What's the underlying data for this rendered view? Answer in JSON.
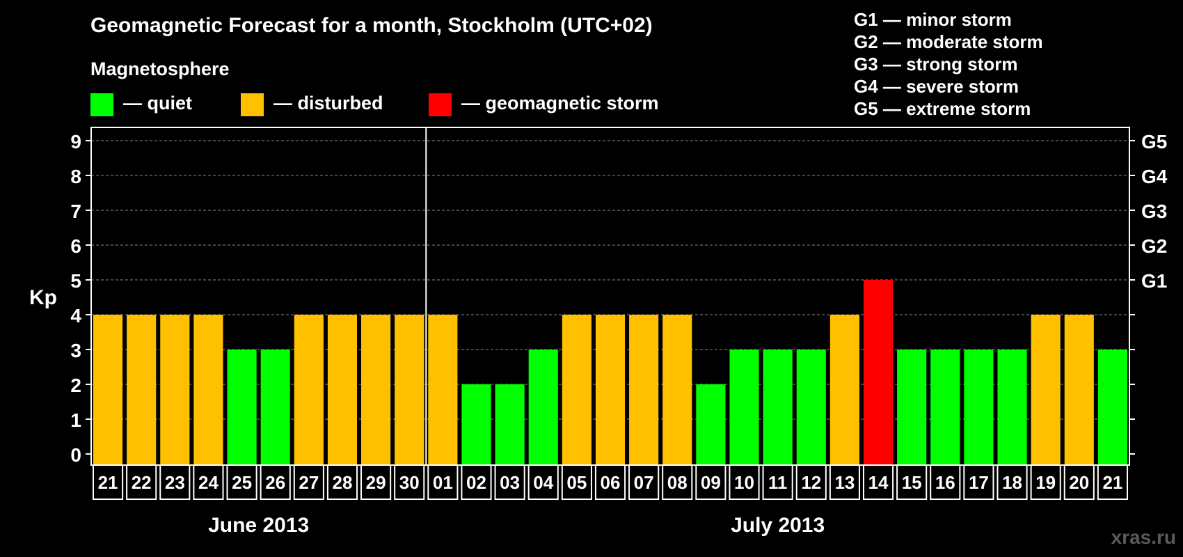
{
  "header": {
    "title": "Geomagnetic Forecast for a month, Stockholm (UTC+02)",
    "legend_heading": "Magnetosphere"
  },
  "legend": [
    {
      "label": "— quiet",
      "color": "#00ff00"
    },
    {
      "label": "— disturbed",
      "color": "#ffc000"
    },
    {
      "label": "— geomagnetic storm",
      "color": "#ff0000"
    }
  ],
  "storm_scale": [
    "G1 — minor storm",
    "G2 — moderate storm",
    "G3 — strong storm",
    "G4 — severe storm",
    "G5 — extreme storm"
  ],
  "watermark": "xras.ru",
  "chart_data": {
    "type": "bar",
    "ylabel": "Kp",
    "ylim": [
      0,
      9
    ],
    "yticks": [
      0,
      1,
      2,
      3,
      4,
      5,
      6,
      7,
      8,
      9
    ],
    "right_axis_labels": [
      {
        "value": 5,
        "label": "G1"
      },
      {
        "value": 6,
        "label": "G2"
      },
      {
        "value": 7,
        "label": "G3"
      },
      {
        "value": 8,
        "label": "G4"
      },
      {
        "value": 9,
        "label": "G5"
      }
    ],
    "grid": true,
    "categories": [
      "21",
      "22",
      "23",
      "24",
      "25",
      "26",
      "27",
      "28",
      "29",
      "30",
      "01",
      "02",
      "03",
      "04",
      "05",
      "06",
      "07",
      "08",
      "09",
      "10",
      "11",
      "12",
      "13",
      "14",
      "15",
      "16",
      "17",
      "18",
      "19",
      "20",
      "21"
    ],
    "values": [
      4,
      4,
      4,
      4,
      3,
      3,
      4,
      4,
      4,
      4,
      4,
      2,
      2,
      3,
      4,
      4,
      4,
      4,
      2,
      3,
      3,
      3,
      4,
      5,
      3,
      3,
      3,
      3,
      4,
      4,
      3
    ],
    "colors": {
      "quiet": "#00ff00",
      "disturbed": "#ffc000",
      "storm": "#ff0000"
    },
    "months": [
      {
        "label": "June 2013",
        "start": 0,
        "count": 10
      },
      {
        "label": "July 2013",
        "start": 10,
        "count": 21
      }
    ]
  }
}
